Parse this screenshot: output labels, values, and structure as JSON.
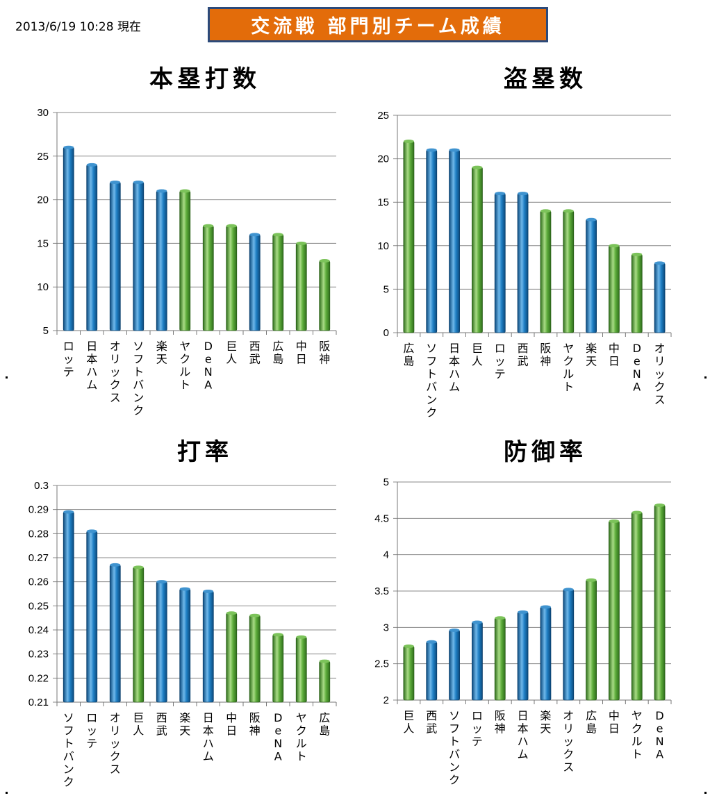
{
  "header": {
    "timestamp": "2013/6/19  10:28 現在",
    "banner": "交流戦 部門別チーム成績"
  },
  "colors": {
    "pacific_league": "#1f7fc4",
    "central_league": "#5cab3a",
    "grid": "#888888"
  },
  "chart_data": [
    {
      "type": "bar",
      "title": "本塁打数",
      "categories": [
        "ロッテ",
        "日本ハム",
        "オリックス",
        "ソフトバンク",
        "楽天",
        "ヤクルト",
        "DeNA",
        "巨人",
        "西武",
        "広島",
        "中日",
        "阪神"
      ],
      "values": [
        26,
        24,
        22,
        22,
        21,
        21,
        17,
        17,
        16,
        16,
        15,
        13
      ],
      "league": [
        "P",
        "P",
        "P",
        "P",
        "P",
        "C",
        "C",
        "C",
        "P",
        "C",
        "C",
        "C"
      ],
      "ylim": [
        5,
        30
      ],
      "yticks": [
        "5",
        "10",
        "15",
        "20",
        "25",
        "30"
      ],
      "grid": true
    },
    {
      "type": "bar",
      "title": "盗塁数",
      "categories": [
        "広島",
        "ソフトバンク",
        "日本ハム",
        "巨人",
        "ロッテ",
        "西武",
        "阪神",
        "ヤクルト",
        "楽天",
        "中日",
        "DeNA",
        "オリックス"
      ],
      "values": [
        22,
        21,
        21,
        19,
        16,
        16,
        14,
        14,
        13,
        10,
        9,
        8
      ],
      "league": [
        "C",
        "P",
        "P",
        "C",
        "P",
        "P",
        "C",
        "C",
        "P",
        "C",
        "C",
        "P"
      ],
      "ylim": [
        0,
        25
      ],
      "yticks": [
        "0",
        "5",
        "10",
        "15",
        "20",
        "25"
      ],
      "grid": true
    },
    {
      "type": "bar",
      "title": "打率",
      "categories": [
        "ソフトバンク",
        "ロッテ",
        "オリックス",
        "巨人",
        "西武",
        "楽天",
        "日本ハム",
        "中日",
        "阪神",
        "DeNA",
        "ヤクルト",
        "広島"
      ],
      "values": [
        0.289,
        0.281,
        0.267,
        0.266,
        0.26,
        0.257,
        0.256,
        0.247,
        0.246,
        0.238,
        0.237,
        0.227
      ],
      "league": [
        "P",
        "P",
        "P",
        "C",
        "P",
        "P",
        "P",
        "C",
        "C",
        "C",
        "C",
        "C"
      ],
      "ylim": [
        0.21,
        0.3
      ],
      "yticks": [
        "0.21",
        "0.22",
        "0.23",
        "0.24",
        "0.25",
        "0.26",
        "0.27",
        "0.28",
        "0.29",
        "0.3"
      ],
      "grid": true
    },
    {
      "type": "bar",
      "title": "防御率",
      "categories": [
        "巨人",
        "西武",
        "ソフトバンク",
        "ロッテ",
        "阪神",
        "日本ハム",
        "楽天",
        "オリックス",
        "広島",
        "中日",
        "ヤクルト",
        "DeNA"
      ],
      "values": [
        2.74,
        2.8,
        2.96,
        3.07,
        3.13,
        3.21,
        3.28,
        3.52,
        3.65,
        4.46,
        4.58,
        4.68
      ],
      "league": [
        "C",
        "P",
        "P",
        "P",
        "C",
        "P",
        "P",
        "P",
        "C",
        "C",
        "C",
        "C"
      ],
      "ylim": [
        2,
        5
      ],
      "yticks": [
        "2",
        "2.5",
        "3",
        "3.5",
        "4",
        "4.5",
        "5"
      ],
      "grid": true
    }
  ]
}
